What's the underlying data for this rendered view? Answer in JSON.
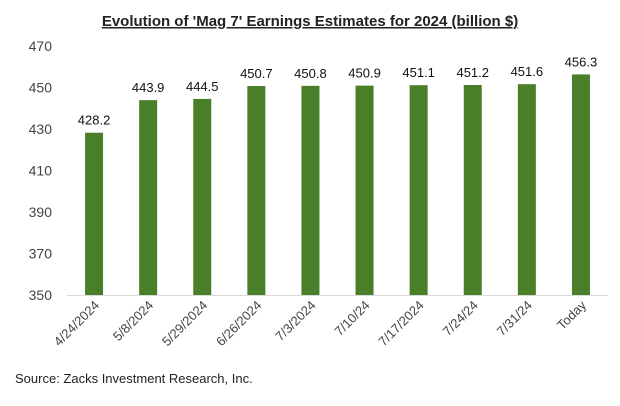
{
  "chart_data": {
    "type": "bar",
    "title": "Evolution of 'Mag 7' Earnings Estimates for 2024 (billion $)",
    "categories": [
      "4/24/2024",
      "5/8/2024",
      "5/29/2024",
      "6/26/2024",
      "7/3/2024",
      "7/10/24",
      "7/17/2024",
      "7/24/24",
      "7/31/24",
      "Today"
    ],
    "values": [
      428.2,
      443.9,
      444.5,
      450.7,
      450.8,
      450.9,
      451.1,
      451.2,
      451.6,
      456.3
    ],
    "data_labels": [
      "428.2",
      "443.9",
      "444.5",
      "450.7",
      "450.8",
      "450.9",
      "451.1",
      "451.2",
      "451.6",
      "456.3"
    ],
    "xlabel": "",
    "ylabel": "",
    "ylim": [
      350,
      470
    ],
    "yticks": [
      "350",
      "370",
      "390",
      "410",
      "430",
      "450",
      "470"
    ],
    "grid": false,
    "bar_color": "#4a7f2a"
  },
  "source": "Source: Zacks Investment Research, Inc."
}
